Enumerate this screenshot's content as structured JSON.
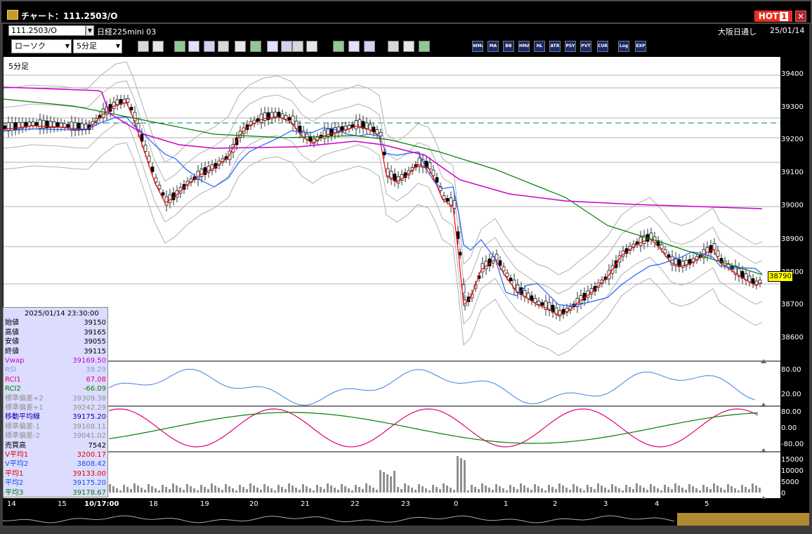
{
  "window": {
    "title": "チャート：111.2503/O",
    "hot_label": "HOT",
    "hot_number": "1",
    "close_glyph": "×"
  },
  "symbol_bar": {
    "code": "111.2503/O",
    "name": "日経225mini 03",
    "market": "大阪日通し",
    "date": "25/01/14"
  },
  "toolbar": {
    "chart_type": "ローソク",
    "interval": "5分足",
    "buttons": [
      "zoom-in-icon",
      "crosshair-icon",
      "trend-line-icon",
      "draw-icon",
      "undo-icon",
      "print-icon",
      "delete-icon",
      "bar-width-icon",
      "bar-spacing-icon",
      "all-icon",
      "settings-icon",
      "paint-icon",
      "color-icon",
      "down-icon",
      "zoom-icon",
      "chart-icon",
      "compare-icon",
      "blank-icon"
    ],
    "indicator_buttons": [
      "WMA",
      "MA",
      "BB",
      "HMA",
      "HL",
      "ATR",
      "PSY",
      "PVT",
      "CUR",
      "Log",
      "EXP"
    ]
  },
  "chart": {
    "pane_label": "5分足",
    "last_price": "38790",
    "colors": {
      "up": "#ffffff",
      "down": "#000000",
      "ma_red": "#ff0000",
      "ma_blue": "#2060ff",
      "ma_green": "#008000",
      "vwap": "#cc00cc",
      "bb": "#b0b0b0",
      "rsi": "#4080e0",
      "rci1": "#e0007a",
      "rci2": "#008000",
      "volume": "#909090",
      "hline": "#008080"
    },
    "y_ticks": [
      "39400",
      "39300",
      "39200",
      "39100",
      "39000",
      "38900",
      "38800",
      "38700",
      "38600"
    ],
    "rsi_ticks": [
      "80.00",
      "20.00"
    ],
    "rci_ticks": [
      "80.00",
      "0.00",
      "-80.00"
    ],
    "vol_ticks": [
      "15000",
      "10000",
      "5000",
      "0"
    ],
    "x_labels": [
      "14",
      "15",
      "10/17:00",
      "18",
      "19",
      "20",
      "21",
      "22",
      "23",
      "0",
      "1",
      "2",
      "3",
      "4",
      "5"
    ]
  },
  "info_panel": [
    {
      "k": "2025/01/14 23:30:00",
      "v": "",
      "color": "#000000"
    },
    {
      "k": "始値",
      "v": "39150",
      "color": "#000000"
    },
    {
      "k": "高値",
      "v": "39165",
      "color": "#000000"
    },
    {
      "k": "安値",
      "v": "39055",
      "color": "#000000"
    },
    {
      "k": "終値",
      "v": "39115",
      "color": "#000000"
    },
    {
      "k": "Vwap",
      "v": "39169.50",
      "color": "#cc00cc"
    },
    {
      "k": "RSI",
      "v": "39.29",
      "color": "#7aa0e0"
    },
    {
      "k": "RCI1",
      "v": "67.08",
      "color": "#e0007a"
    },
    {
      "k": "RCI2",
      "v": "-66.09",
      "color": "#008000"
    },
    {
      "k": "標準偏差+2",
      "v": "39309.38",
      "color": "#909090"
    },
    {
      "k": "標準偏差+1",
      "v": "39242.29",
      "color": "#909090"
    },
    {
      "k": "移動平均線",
      "v": "39175.20",
      "color": "#0000aa"
    },
    {
      "k": "標準偏差-1",
      "v": "39108.11",
      "color": "#909090"
    },
    {
      "k": "標準偏差-2",
      "v": "39041.02",
      "color": "#909090"
    },
    {
      "k": "売買高",
      "v": "7542",
      "color": "#000000"
    },
    {
      "k": "V平均1",
      "v": "3200.17",
      "color": "#e00000"
    },
    {
      "k": "V平均2",
      "v": "3808.42",
      "color": "#1a50e0"
    },
    {
      "k": "平均1",
      "v": "39133.00",
      "color": "#e00000"
    },
    {
      "k": "平均2",
      "v": "39175.20",
      "color": "#1a50e0"
    },
    {
      "k": "平均3",
      "v": "39178.67",
      "color": "#008000"
    }
  ]
}
